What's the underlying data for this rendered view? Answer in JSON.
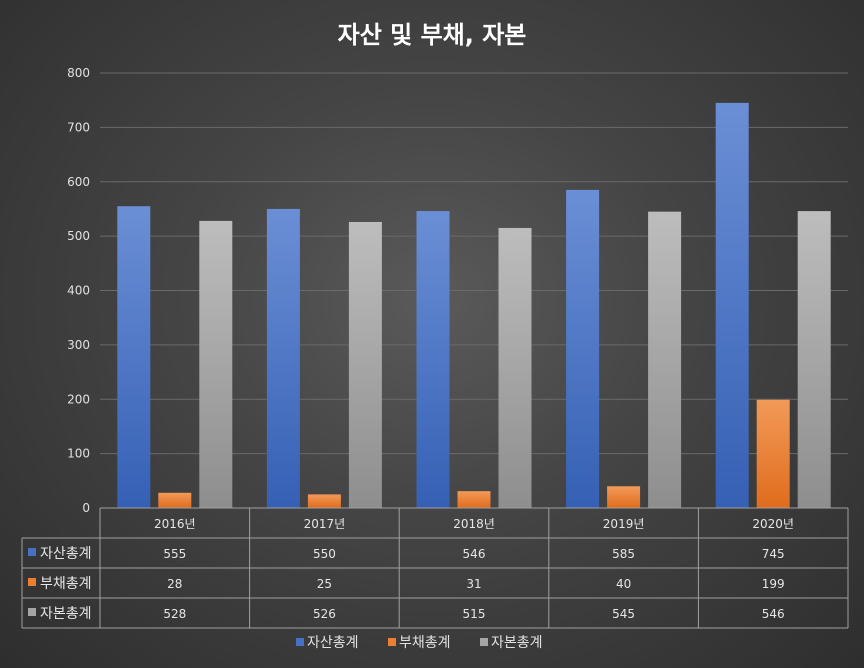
{
  "chart_data": {
    "type": "bar",
    "title": "자산 및 부채, 자본",
    "categories": [
      "2016년",
      "2017년",
      "2018년",
      "2019년",
      "2020년"
    ],
    "ylim": [
      0,
      800
    ],
    "yticks": [
      0,
      100,
      200,
      300,
      400,
      500,
      600,
      700,
      800
    ],
    "grid": true,
    "legend_position": "bottom",
    "data_table": true,
    "series": [
      {
        "name": "자산총계",
        "color": "#4472c4",
        "values": [
          555,
          550,
          546,
          585,
          745
        ]
      },
      {
        "name": "부채총계",
        "color": "#ed7d31",
        "values": [
          28,
          25,
          31,
          40,
          199
        ]
      },
      {
        "name": "자본총계",
        "color": "#a5a5a5",
        "values": [
          528,
          526,
          515,
          545,
          546
        ]
      }
    ]
  }
}
